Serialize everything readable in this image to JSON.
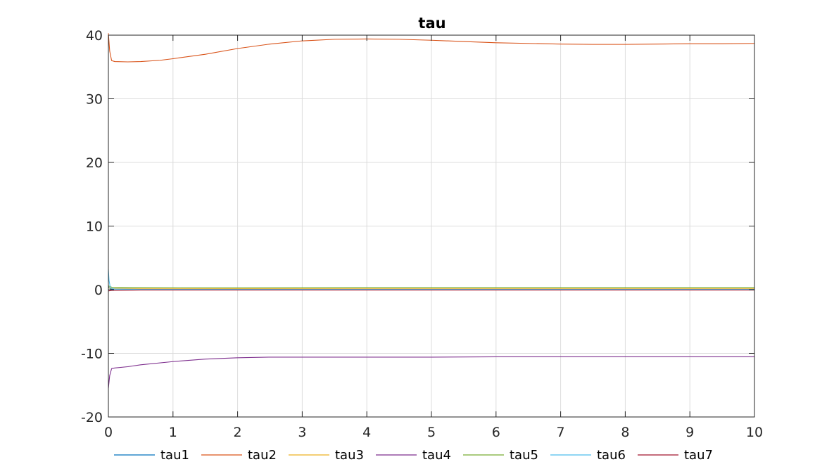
{
  "chart_data": {
    "type": "line",
    "title": "tau",
    "xlabel": "",
    "ylabel": "",
    "xlim": [
      0,
      10
    ],
    "ylim": [
      -20,
      40
    ],
    "xticks": [
      "0",
      "1",
      "2",
      "3",
      "4",
      "5",
      "6",
      "7",
      "8",
      "9",
      "10"
    ],
    "yticks": [
      "-20",
      "-10",
      "0",
      "10",
      "20",
      "30",
      "40"
    ],
    "grid": true,
    "legend_position": "bottom",
    "series": [
      {
        "name": "tau1",
        "color": "#0072BD",
        "points": [
          [
            0,
            0.5
          ],
          [
            0.03,
            0.1
          ],
          [
            0.5,
            0.05
          ],
          [
            1,
            0.05
          ],
          [
            3,
            0.05
          ],
          [
            6,
            0.05
          ],
          [
            10,
            0.05
          ]
        ]
      },
      {
        "name": "tau2",
        "color": "#D95319",
        "points": [
          [
            0,
            40.3
          ],
          [
            0.02,
            37.5
          ],
          [
            0.05,
            36.0
          ],
          [
            0.1,
            35.85
          ],
          [
            0.3,
            35.8
          ],
          [
            0.5,
            35.85
          ],
          [
            0.8,
            36.05
          ],
          [
            1,
            36.3
          ],
          [
            1.5,
            37.0
          ],
          [
            2,
            37.9
          ],
          [
            2.5,
            38.6
          ],
          [
            3,
            39.1
          ],
          [
            3.5,
            39.35
          ],
          [
            4,
            39.4
          ],
          [
            4.5,
            39.35
          ],
          [
            5,
            39.2
          ],
          [
            5.5,
            39.0
          ],
          [
            6,
            38.8
          ],
          [
            6.5,
            38.7
          ],
          [
            7,
            38.6
          ],
          [
            7.5,
            38.55
          ],
          [
            8,
            38.55
          ],
          [
            8.5,
            38.6
          ],
          [
            9,
            38.65
          ],
          [
            9.5,
            38.65
          ],
          [
            10,
            38.7
          ]
        ]
      },
      {
        "name": "tau3",
        "color": "#EDB120",
        "points": [
          [
            0,
            0.3
          ],
          [
            0.05,
            0.2
          ],
          [
            0.5,
            0.15
          ],
          [
            2,
            0.15
          ],
          [
            5,
            0.15
          ],
          [
            10,
            0.15
          ]
        ]
      },
      {
        "name": "tau4",
        "color": "#7E2F8E",
        "points": [
          [
            0,
            -15.5
          ],
          [
            0.02,
            -13.5
          ],
          [
            0.05,
            -12.4
          ],
          [
            0.1,
            -12.3
          ],
          [
            0.3,
            -12.1
          ],
          [
            0.5,
            -11.8
          ],
          [
            1,
            -11.3
          ],
          [
            1.5,
            -10.9
          ],
          [
            2,
            -10.7
          ],
          [
            2.5,
            -10.6
          ],
          [
            3,
            -10.6
          ],
          [
            4,
            -10.6
          ],
          [
            5,
            -10.6
          ],
          [
            6,
            -10.55
          ],
          [
            7,
            -10.55
          ],
          [
            8,
            -10.55
          ],
          [
            9,
            -10.55
          ],
          [
            10,
            -10.55
          ]
        ]
      },
      {
        "name": "tau5",
        "color": "#77AC30",
        "points": [
          [
            0,
            0.6
          ],
          [
            0.05,
            0.4
          ],
          [
            0.5,
            0.35
          ],
          [
            2,
            0.3
          ],
          [
            4,
            0.35
          ],
          [
            6,
            0.35
          ],
          [
            8,
            0.35
          ],
          [
            10,
            0.35
          ]
        ]
      },
      {
        "name": "tau6",
        "color": "#4DBEEE",
        "points": [
          [
            0,
            3.2
          ],
          [
            0.01,
            1.5
          ],
          [
            0.03,
            0.3
          ],
          [
            0.1,
            0.1
          ],
          [
            0.5,
            0.05
          ],
          [
            2,
            0.05
          ],
          [
            10,
            0.05
          ]
        ]
      },
      {
        "name": "tau7",
        "color": "#A2142F",
        "points": [
          [
            0,
            -0.2
          ],
          [
            0.05,
            -0.1
          ],
          [
            0.5,
            -0.05
          ],
          [
            2,
            -0.05
          ],
          [
            10,
            -0.05
          ]
        ]
      }
    ]
  }
}
